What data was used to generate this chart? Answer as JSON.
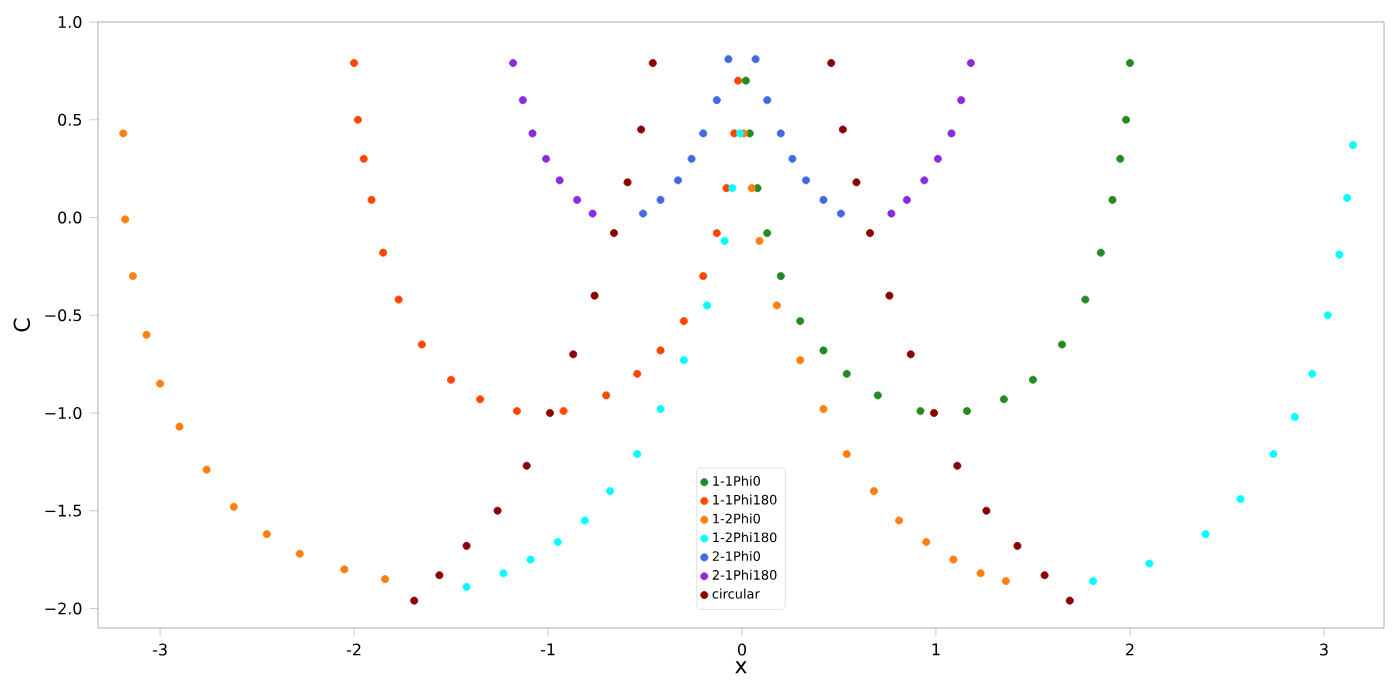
{
  "chart_data": {
    "type": "scatter",
    "xlabel": "x",
    "ylabel": "C",
    "xlim": [
      -3.32,
      3.31
    ],
    "ylim": [
      -2.1,
      1.0
    ],
    "xticks": [
      -3,
      -2,
      -1,
      0,
      1,
      2,
      3
    ],
    "yticks": [
      {
        "value": -2.0,
        "label": "−2.0"
      },
      {
        "value": -1.5,
        "label": "−1.5"
      },
      {
        "value": -1.0,
        "label": "−1.0"
      },
      {
        "value": -0.5,
        "label": "−0.5"
      },
      {
        "value": 0.0,
        "label": "0.0"
      },
      {
        "value": 0.5,
        "label": "0.5"
      },
      {
        "value": 1.0,
        "label": "1.0"
      }
    ],
    "legend": "bottom",
    "grid": false,
    "series": [
      {
        "name": "1-1Phi0",
        "color": "#228b22",
        "x": [
          0.02,
          0.04,
          0.08,
          0.13,
          0.2,
          0.3,
          0.42,
          0.54,
          0.7,
          0.92,
          1.16,
          1.35,
          1.5,
          1.65,
          1.77,
          1.85,
          1.91,
          1.95,
          1.98,
          2.0
        ],
        "values": [
          0.7,
          0.43,
          0.15,
          -0.08,
          -0.3,
          -0.53,
          -0.68,
          -0.8,
          -0.91,
          -0.99,
          -0.99,
          -0.93,
          -0.83,
          -0.65,
          -0.42,
          -0.18,
          0.09,
          0.3,
          0.5,
          0.79
        ]
      },
      {
        "name": "1-1Phi180",
        "color": "#ff4500",
        "x": [
          -0.02,
          -0.04,
          -0.08,
          -0.13,
          -0.2,
          -0.3,
          -0.42,
          -0.54,
          -0.7,
          -0.92,
          -1.16,
          -1.35,
          -1.5,
          -1.65,
          -1.77,
          -1.85,
          -1.91,
          -1.95,
          -1.98,
          -2.0
        ],
        "values": [
          0.7,
          0.43,
          0.15,
          -0.08,
          -0.3,
          -0.53,
          -0.68,
          -0.8,
          -0.91,
          -0.99,
          -0.99,
          -0.93,
          -0.83,
          -0.65,
          -0.42,
          -0.18,
          0.09,
          0.3,
          0.5,
          0.79
        ]
      },
      {
        "name": "1-2Phi0",
        "color": "#ff7f0e",
        "x": [
          -3.19,
          -3.18,
          -3.14,
          -3.07,
          -3.0,
          -2.9,
          -2.76,
          -2.62,
          -2.45,
          -2.28,
          -2.05,
          -1.84,
          0.01,
          0.05,
          0.09,
          0.18,
          0.3,
          0.42,
          0.54,
          0.68,
          0.81,
          0.95,
          1.09,
          1.23,
          1.36
        ],
        "values": [
          0.43,
          -0.01,
          -0.3,
          -0.6,
          -0.85,
          -1.07,
          -1.29,
          -1.48,
          -1.62,
          -1.72,
          -1.8,
          -1.85,
          0.43,
          0.15,
          -0.12,
          -0.45,
          -0.73,
          -0.98,
          -1.21,
          -1.4,
          -1.55,
          -1.66,
          -1.75,
          -1.82,
          -1.86
        ]
      },
      {
        "name": "1-2Phi180",
        "color": "#00ffff",
        "x": [
          3.15,
          3.12,
          3.08,
          3.02,
          2.94,
          2.85,
          2.74,
          2.57,
          2.39,
          2.1,
          1.81,
          -0.01,
          -0.05,
          -0.09,
          -0.18,
          -0.3,
          -0.42,
          -0.54,
          -0.68,
          -0.81,
          -0.95,
          -1.09,
          -1.23,
          -1.42
        ],
        "values": [
          0.37,
          0.1,
          -0.19,
          -0.5,
          -0.8,
          -1.02,
          -1.21,
          -1.44,
          -1.62,
          -1.77,
          -1.86,
          0.43,
          0.15,
          -0.12,
          -0.45,
          -0.73,
          -0.98,
          -1.21,
          -1.4,
          -1.55,
          -1.66,
          -1.75,
          -1.82,
          -1.89
        ]
      },
      {
        "name": "2-1Phi0",
        "color": "#4169e1",
        "x": [
          0.07,
          0.13,
          0.2,
          0.26,
          0.33,
          0.42,
          0.51,
          -0.07,
          -0.13,
          -0.2,
          -0.26,
          -0.33,
          -0.42,
          -0.51
        ],
        "values": [
          0.81,
          0.6,
          0.43,
          0.3,
          0.19,
          0.09,
          0.02,
          0.81,
          0.6,
          0.43,
          0.3,
          0.19,
          0.09,
          0.02
        ]
      },
      {
        "name": "2-1Phi180",
        "color": "#8a2be2",
        "x": [
          -1.18,
          -1.13,
          -1.08,
          -1.01,
          -0.94,
          -0.85,
          -0.77,
          1.18,
          1.13,
          1.08,
          1.01,
          0.94,
          0.85,
          0.77
        ],
        "values": [
          0.79,
          0.6,
          0.43,
          0.3,
          0.19,
          0.09,
          0.02,
          0.79,
          0.6,
          0.43,
          0.3,
          0.19,
          0.09,
          0.02
        ]
      },
      {
        "name": "circular",
        "color": "#8b0000",
        "x": [
          -0.46,
          -0.52,
          -0.59,
          -0.66,
          -0.76,
          -0.87,
          -0.99,
          -1.11,
          -1.26,
          -1.42,
          -1.56,
          -1.69,
          0.46,
          0.52,
          0.59,
          0.66,
          0.76,
          0.87,
          0.99,
          1.11,
          1.26,
          1.42,
          1.56,
          1.69
        ],
        "values": [
          0.79,
          0.45,
          0.18,
          -0.08,
          -0.4,
          -0.7,
          -1.0,
          -1.27,
          -1.5,
          -1.68,
          -1.83,
          -1.96,
          0.79,
          0.45,
          0.18,
          -0.08,
          -0.4,
          -0.7,
          -1.0,
          -1.27,
          -1.5,
          -1.68,
          -1.83,
          -1.96
        ]
      }
    ]
  }
}
